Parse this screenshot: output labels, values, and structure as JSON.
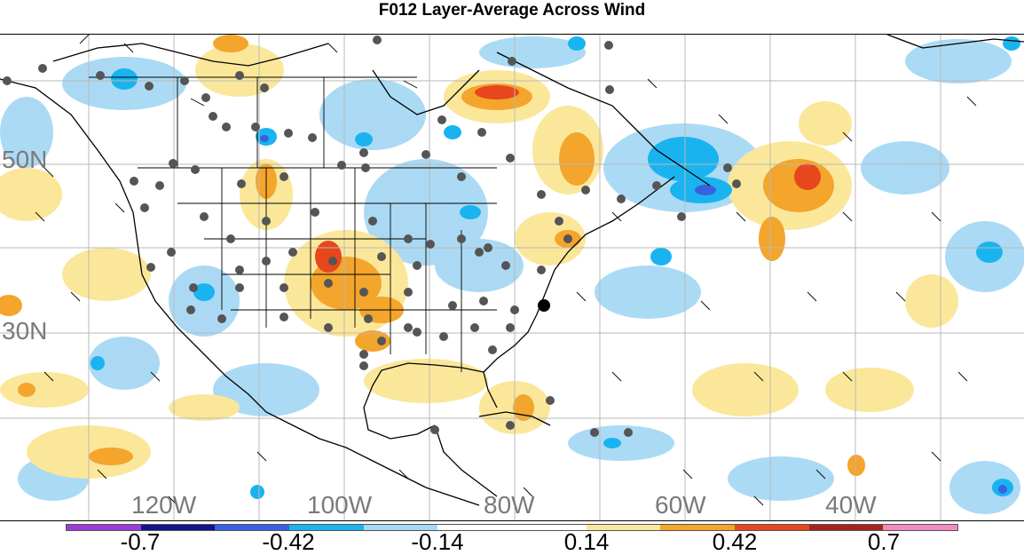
{
  "title": "F012 Layer-Average Across Wind",
  "map": {
    "lat_labels": [
      "50N",
      "30N"
    ],
    "lon_labels": [
      "120W",
      "100W",
      "80W",
      "60W",
      "40W"
    ]
  },
  "colorbar": {
    "colors": [
      "#9b3cd6",
      "#101488",
      "#3a5fe0",
      "#19b4f0",
      "#a7d8f4",
      "#ffffff",
      "#ffffff",
      "#fbe79a",
      "#f3a52c",
      "#e8461c",
      "#a6231e",
      "#f28cbe"
    ],
    "labels": [
      "-0.7",
      "-0.42",
      "-0.14",
      "0.14",
      "0.42",
      "0.7"
    ]
  }
}
